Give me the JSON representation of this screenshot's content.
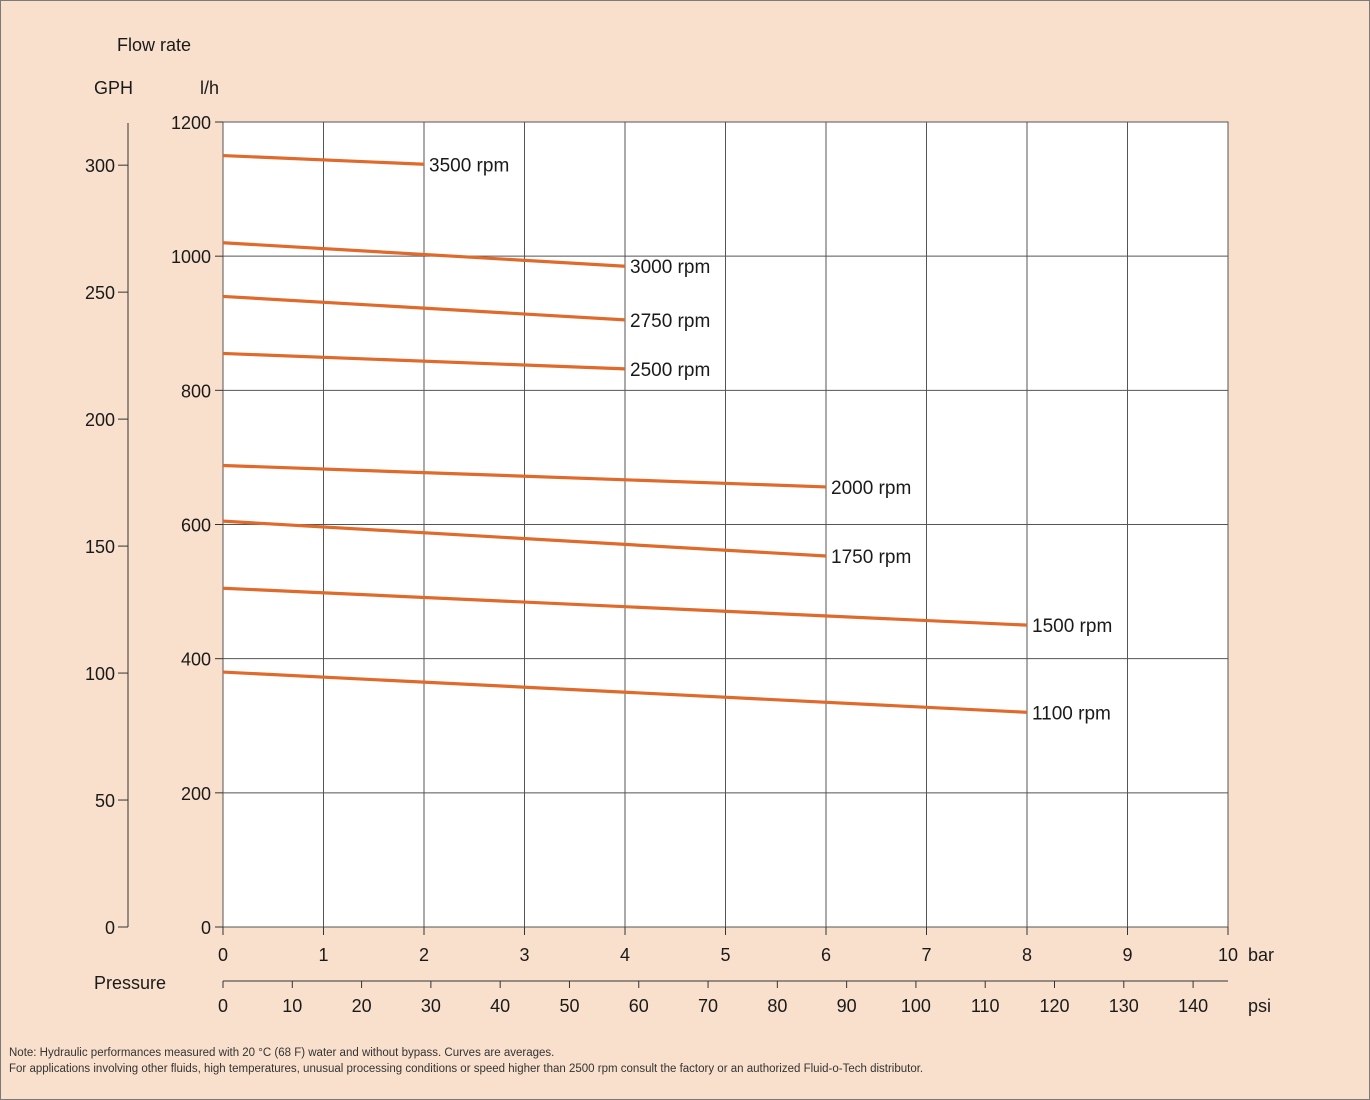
{
  "chart_data": {
    "type": "line",
    "titles": {
      "y_axis_title": "Flow rate",
      "y_left_unit": "GPH",
      "y_right_unit": "l/h",
      "x_axis_title": "Pressure",
      "x_bar_unit": "bar",
      "x_psi_unit": "psi"
    },
    "x_bar": {
      "min": 0,
      "max": 10,
      "ticks": [
        0,
        1,
        2,
        3,
        4,
        5,
        6,
        7,
        8,
        9,
        10
      ]
    },
    "x_psi": {
      "min": 0,
      "max": 145.038,
      "ticks": [
        0,
        10,
        20,
        30,
        40,
        50,
        60,
        70,
        80,
        90,
        100,
        110,
        120,
        130,
        140
      ]
    },
    "y_lh": {
      "min": 0,
      "max": 1200,
      "ticks": [
        0,
        200,
        400,
        600,
        800,
        1000,
        1200
      ]
    },
    "y_gph": {
      "min": 0,
      "max": 317.0,
      "ticks": [
        0,
        50,
        100,
        150,
        200,
        250,
        300
      ]
    },
    "grid": true,
    "colors": {
      "line": "#e06a2b",
      "grid": "#555555",
      "axis": "#333333"
    },
    "series": [
      {
        "name": "3500 rpm",
        "x": [
          0,
          2
        ],
        "y": [
          1150,
          1137
        ]
      },
      {
        "name": "3000 rpm",
        "x": [
          0,
          4
        ],
        "y": [
          1020,
          985
        ]
      },
      {
        "name": "2750 rpm",
        "x": [
          0,
          4
        ],
        "y": [
          940,
          905
        ]
      },
      {
        "name": "2500 rpm",
        "x": [
          0,
          4
        ],
        "y": [
          855,
          832
        ]
      },
      {
        "name": "2000 rpm",
        "x": [
          0,
          6
        ],
        "y": [
          688,
          656
        ]
      },
      {
        "name": "1750 rpm",
        "x": [
          0,
          6
        ],
        "y": [
          605,
          553
        ]
      },
      {
        "name": "1500 rpm",
        "x": [
          0,
          8
        ],
        "y": [
          505,
          450
        ]
      },
      {
        "name": "1100 rpm",
        "x": [
          0,
          8
        ],
        "y": [
          380,
          320
        ]
      }
    ]
  },
  "notes": {
    "line1": "Note: Hydraulic performances measured with 20 °C (68 F) water and without bypass. Curves are averages.",
    "line2": "For applications involving other fluids, high temperatures, unusual processing conditions or speed higher than 2500 rpm consult the factory or an authorized Fluid-o-Tech distributor."
  }
}
